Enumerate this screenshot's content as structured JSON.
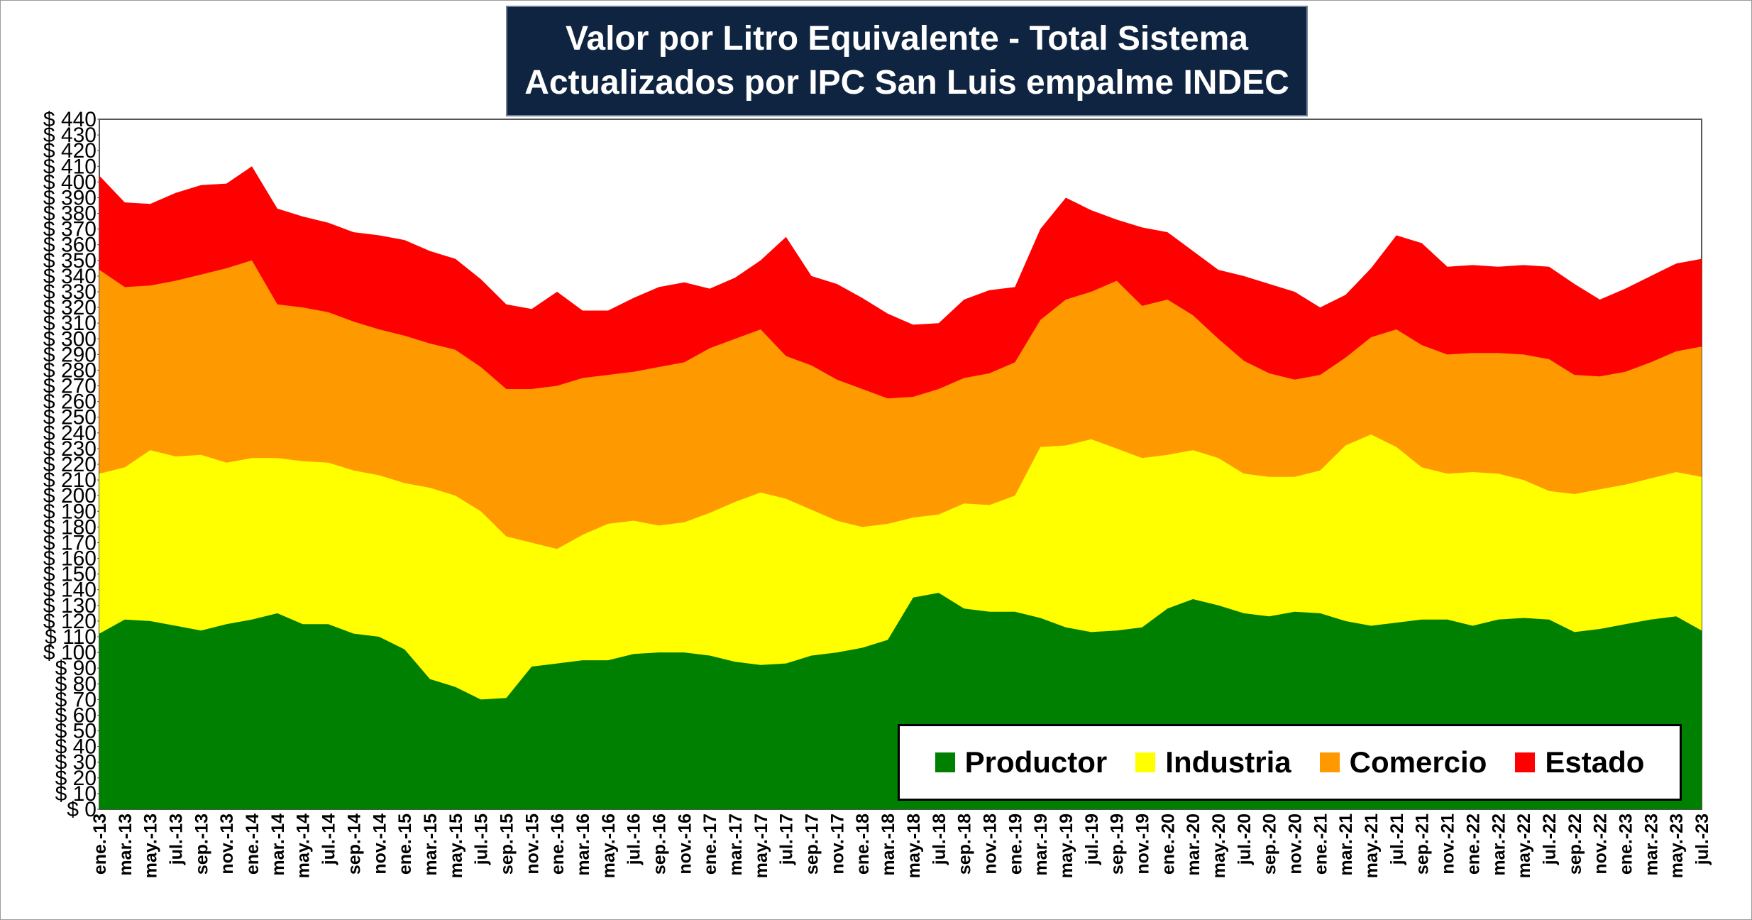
{
  "chart_data": {
    "type": "area",
    "stacked": true,
    "title": "Valor por Litro Equivalente - Total Sistema",
    "subtitle": "Actualizados por IPC San Luis empalme INDEC",
    "y_prefix": "$",
    "ylim": [
      0,
      440
    ],
    "y_step": 10,
    "x_labels": [
      "ene.-13",
      "mar.-13",
      "may.-13",
      "jul.-13",
      "sep.-13",
      "nov.-13",
      "ene.-14",
      "mar.-14",
      "may.-14",
      "jul.-14",
      "sep.-14",
      "nov.-14",
      "ene.-15",
      "mar.-15",
      "may.-15",
      "jul.-15",
      "sep.-15",
      "nov.-15",
      "ene.-16",
      "mar.-16",
      "may.-16",
      "jul.-16",
      "sep.-16",
      "nov.-16",
      "ene.-17",
      "mar.-17",
      "may.-17",
      "jul.-17",
      "sep.-17",
      "nov.-17",
      "ene.-18",
      "mar.-18",
      "may.-18",
      "jul.-18",
      "sep.-18",
      "nov.-18",
      "ene.-19",
      "mar.-19",
      "may.-19",
      "jul.-19",
      "sep.-19",
      "nov.-19",
      "ene.-20",
      "mar.-20",
      "may.-20",
      "jul.-20",
      "sep.-20",
      "nov.-20",
      "ene.-21",
      "mar.-21",
      "may.-21",
      "jul.-21",
      "sep.-21",
      "nov.-21",
      "ene.-22",
      "mar.-22",
      "may.-22",
      "jul.-22",
      "sep.-22",
      "nov.-22",
      "ene.-23",
      "mar.-23",
      "may.-23",
      "jul.-23"
    ],
    "legend_position": "bottom-right",
    "series": [
      {
        "name": "Productor",
        "color": "#008000",
        "values": [
          112,
          121,
          120,
          117,
          114,
          118,
          121,
          125,
          118,
          118,
          112,
          110,
          102,
          83,
          78,
          70,
          71,
          91,
          93,
          95,
          95,
          99,
          100,
          100,
          98,
          94,
          92,
          93,
          98,
          100,
          103,
          108,
          135,
          138,
          128,
          126,
          126,
          122,
          116,
          113,
          114,
          116,
          128,
          134,
          130,
          125,
          123,
          126,
          125,
          120,
          117,
          119,
          121,
          121,
          117,
          121,
          122,
          121,
          113,
          115,
          118,
          121,
          123,
          114
        ]
      },
      {
        "name": "Industria",
        "color": "#ffff00",
        "values": [
          214,
          218,
          229,
          225,
          226,
          221,
          224,
          224,
          222,
          221,
          216,
          213,
          208,
          205,
          200,
          190,
          174,
          170,
          166,
          175,
          182,
          184,
          181,
          183,
          189,
          196,
          202,
          198,
          191,
          184,
          180,
          182,
          186,
          188,
          195,
          194,
          200,
          231,
          232,
          236,
          230,
          224,
          226,
          229,
          224,
          214,
          212,
          212,
          216,
          232,
          239,
          231,
          218,
          214,
          215,
          214,
          210,
          203,
          201,
          204,
          207,
          211,
          215,
          212
        ]
      },
      {
        "name": "Comercio",
        "color": "#ff9900",
        "values": [
          344,
          333,
          334,
          337,
          341,
          345,
          350,
          322,
          320,
          317,
          311,
          306,
          302,
          297,
          293,
          282,
          268,
          268,
          270,
          275,
          277,
          279,
          282,
          285,
          294,
          300,
          306,
          289,
          283,
          274,
          268,
          262,
          263,
          268,
          275,
          278,
          285,
          312,
          325,
          330,
          337,
          321,
          325,
          315,
          300,
          286,
          278,
          274,
          277,
          288,
          301,
          306,
          296,
          290,
          291,
          291,
          290,
          287,
          277,
          276,
          279,
          285,
          292,
          295
        ]
      },
      {
        "name": "Estado",
        "color": "#ff0000",
        "values": [
          404,
          387,
          386,
          393,
          398,
          399,
          410,
          383,
          378,
          374,
          368,
          366,
          363,
          356,
          351,
          338,
          322,
          319,
          330,
          318,
          318,
          326,
          333,
          336,
          332,
          339,
          350,
          365,
          340,
          335,
          326,
          316,
          309,
          310,
          325,
          331,
          333,
          370,
          390,
          382,
          376,
          371,
          368,
          356,
          344,
          340,
          335,
          330,
          320,
          328,
          345,
          366,
          361,
          346,
          347,
          346,
          347,
          346,
          335,
          325,
          332,
          340,
          348,
          351
        ]
      }
    ]
  }
}
